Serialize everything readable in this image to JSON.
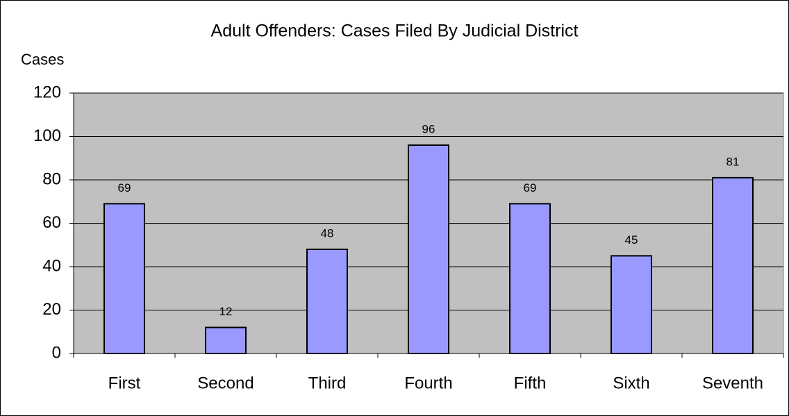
{
  "chart_data": {
    "type": "bar",
    "title": "Adult Offenders: Cases Filed By Judicial District",
    "y_axis_label": "Cases",
    "categories": [
      "First",
      "Second",
      "Third",
      "Fourth",
      "Fifth",
      "Sixth",
      "Seventh"
    ],
    "values": [
      69,
      12,
      48,
      96,
      69,
      45,
      81
    ],
    "color": "#9999ff",
    "plot_background": "#c0c0c0",
    "ylim": [
      0,
      120
    ],
    "yticks": [
      0,
      20,
      40,
      60,
      80,
      100,
      120
    ],
    "grid": true,
    "data_labels": true
  }
}
